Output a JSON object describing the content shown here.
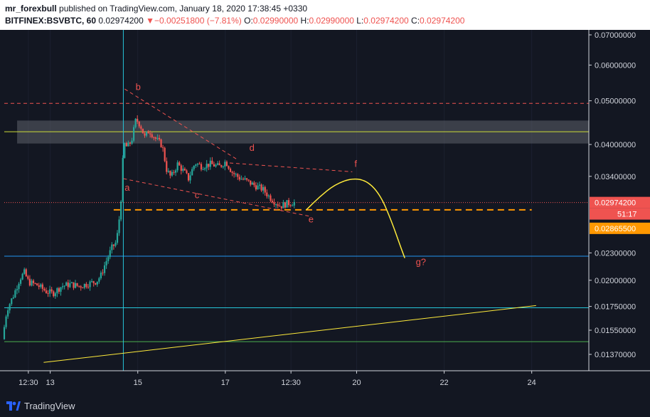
{
  "header": {
    "author": "mr_forexbull",
    "published_text": " published on TradingView.com, January 18, 2020 17:38:45 +0330",
    "symbol": "BITFINEX:BSVBTC, 60",
    "last": "0.02974200",
    "change": "−0.00251800 (−7.81%)",
    "o_label": "O:",
    "o_value": "0.02990000",
    "h_label": "H:",
    "h_value": "0.02990000",
    "l_label": "L:",
    "l_value": "0.02974200",
    "c_label": "C:",
    "c_value": "0.02974200"
  },
  "footer": {
    "brand": "TradingView"
  },
  "colors": {
    "background": "#131722",
    "up": "#26a69a",
    "down": "#ef5350",
    "price_line": "#ef5350",
    "yellow": "#ffeb3b",
    "orange": "#ff9800",
    "green_line": "#4caf50",
    "blue_line": "#2196f3",
    "teal_line": "#26c6da",
    "zone": "#5d6069"
  },
  "chart_data": {
    "type": "candlestick",
    "y_axis": {
      "scale": "log",
      "ticks": [
        {
          "value": 0.07,
          "label": "0.07000000"
        },
        {
          "value": 0.06,
          "label": "0.06000000"
        },
        {
          "value": 0.05,
          "label": "0.05000000"
        },
        {
          "value": 0.04,
          "label": "0.04000000"
        },
        {
          "value": 0.034,
          "label": "0.03400000"
        },
        {
          "value": 0.023,
          "label": "0.02300000"
        },
        {
          "value": 0.02,
          "label": "0.02000000"
        },
        {
          "value": 0.0175,
          "label": "0.01750000"
        },
        {
          "value": 0.0155,
          "label": "0.01550000"
        },
        {
          "value": 0.0137,
          "label": "0.01370000"
        }
      ],
      "badges": [
        {
          "value": 0.029742,
          "label": "0.02974200",
          "countdown": "51:17",
          "color": "#ef5350"
        },
        {
          "value": 0.028655,
          "label": "0.02865500",
          "color": "#ff9800"
        }
      ]
    },
    "x_axis": {
      "ticks": [
        {
          "t": 12.5,
          "label": "12:30"
        },
        {
          "t": 13.0,
          "label": "13"
        },
        {
          "t": 15.0,
          "label": "15"
        },
        {
          "t": 17.0,
          "label": "17"
        },
        {
          "t": 18.5,
          "label": "12:30"
        },
        {
          "t": 20.0,
          "label": "20"
        },
        {
          "t": 22.0,
          "label": "22"
        },
        {
          "t": 24.0,
          "label": "24"
        }
      ]
    },
    "price_path": [
      [
        11.95,
        0.0148
      ],
      [
        12.05,
        0.0172
      ],
      [
        12.2,
        0.0185
      ],
      [
        12.35,
        0.0202
      ],
      [
        12.45,
        0.0208
      ],
      [
        12.55,
        0.0198
      ],
      [
        12.75,
        0.0195
      ],
      [
        12.95,
        0.0189
      ],
      [
        13.1,
        0.0187
      ],
      [
        13.3,
        0.0194
      ],
      [
        13.5,
        0.0196
      ],
      [
        13.7,
        0.0194
      ],
      [
        13.95,
        0.0197
      ],
      [
        14.1,
        0.0199
      ],
      [
        14.2,
        0.0205
      ],
      [
        14.3,
        0.0218
      ],
      [
        14.45,
        0.0236
      ],
      [
        14.55,
        0.0243
      ],
      [
        14.6,
        0.0262
      ],
      [
        14.66,
        0.0305
      ],
      [
        14.72,
        0.0403
      ],
      [
        14.8,
        0.0394
      ],
      [
        14.9,
        0.0408
      ],
      [
        15.0,
        0.0455
      ],
      [
        15.1,
        0.0442
      ],
      [
        15.2,
        0.0415
      ],
      [
        15.3,
        0.043
      ],
      [
        15.45,
        0.0412
      ],
      [
        15.6,
        0.0398
      ],
      [
        15.7,
        0.0352
      ],
      [
        15.8,
        0.0338
      ],
      [
        15.95,
        0.0362
      ],
      [
        16.1,
        0.0348
      ],
      [
        16.2,
        0.0336
      ],
      [
        16.35,
        0.0364
      ],
      [
        16.5,
        0.0358
      ],
      [
        16.7,
        0.0362
      ],
      [
        16.9,
        0.0357
      ],
      [
        17.05,
        0.0367
      ],
      [
        17.2,
        0.0347
      ],
      [
        17.35,
        0.0338
      ],
      [
        17.5,
        0.0333
      ],
      [
        17.7,
        0.0325
      ],
      [
        17.9,
        0.0318
      ],
      [
        18.05,
        0.0306
      ],
      [
        18.15,
        0.03
      ],
      [
        18.3,
        0.0292
      ],
      [
        18.45,
        0.0296
      ],
      [
        18.6,
        0.02974
      ]
    ],
    "horizontal_lines": [
      {
        "value": 0.04935,
        "color": "#ef5350",
        "style": "dashed"
      },
      {
        "value": 0.0427,
        "color": "#cddc39",
        "style": "solid"
      },
      {
        "value": 0.029742,
        "color": "#ef5350",
        "style": "dotted"
      },
      {
        "value": 0.02262,
        "color": "#2196f3",
        "style": "solid"
      },
      {
        "value": 0.01738,
        "color": "#26c6da",
        "style": "solid"
      },
      {
        "value": 0.01462,
        "color": "#4caf50",
        "style": "solid"
      }
    ],
    "zone": {
      "from": 0.0402,
      "to": 0.0452,
      "t_start": 12.0
    },
    "support_dashed": {
      "value": 0.028655,
      "t_start": 14.45,
      "t_end": 24.0
    },
    "vertical_line": {
      "t": 14.67
    },
    "trendlines": [
      {
        "t1": 14.7,
        "v1": 0.0531,
        "t2": 17.3,
        "v2": 0.0369,
        "color": "#ef5350",
        "style": "dashed"
      },
      {
        "t1": 17.1,
        "v1": 0.0364,
        "t2": 19.9,
        "v2": 0.0348,
        "color": "#ef5350",
        "style": "dashed"
      },
      {
        "t1": 14.67,
        "v1": 0.0336,
        "t2": 18.95,
        "v2": 0.0277,
        "color": "#ef5350",
        "style": "dashed"
      },
      {
        "t1": 12.85,
        "v1": 0.01315,
        "t2": 24.1,
        "v2": 0.01758,
        "color": "#ffeb3b",
        "style": "solid"
      }
    ],
    "projection_path": [
      [
        18.85,
        0.02865
      ],
      [
        19.15,
        0.0306
      ],
      [
        19.5,
        0.0326
      ],
      [
        19.9,
        0.0337
      ],
      [
        20.25,
        0.0332
      ],
      [
        20.55,
        0.0308
      ],
      [
        20.8,
        0.027
      ],
      [
        21.0,
        0.0238
      ],
      [
        21.1,
        0.0224
      ]
    ],
    "wave_labels": [
      {
        "label": "a",
        "t": 14.7,
        "v": 0.0316
      },
      {
        "label": "b",
        "t": 14.95,
        "v": 0.0528
      },
      {
        "label": "c",
        "t": 16.3,
        "v": 0.0304
      },
      {
        "label": "d",
        "t": 17.55,
        "v": 0.0387
      },
      {
        "label": "e",
        "t": 18.9,
        "v": 0.0269
      },
      {
        "label": "f",
        "t": 19.95,
        "v": 0.0357
      },
      {
        "label": "g?",
        "t": 21.35,
        "v": 0.0216
      }
    ]
  }
}
